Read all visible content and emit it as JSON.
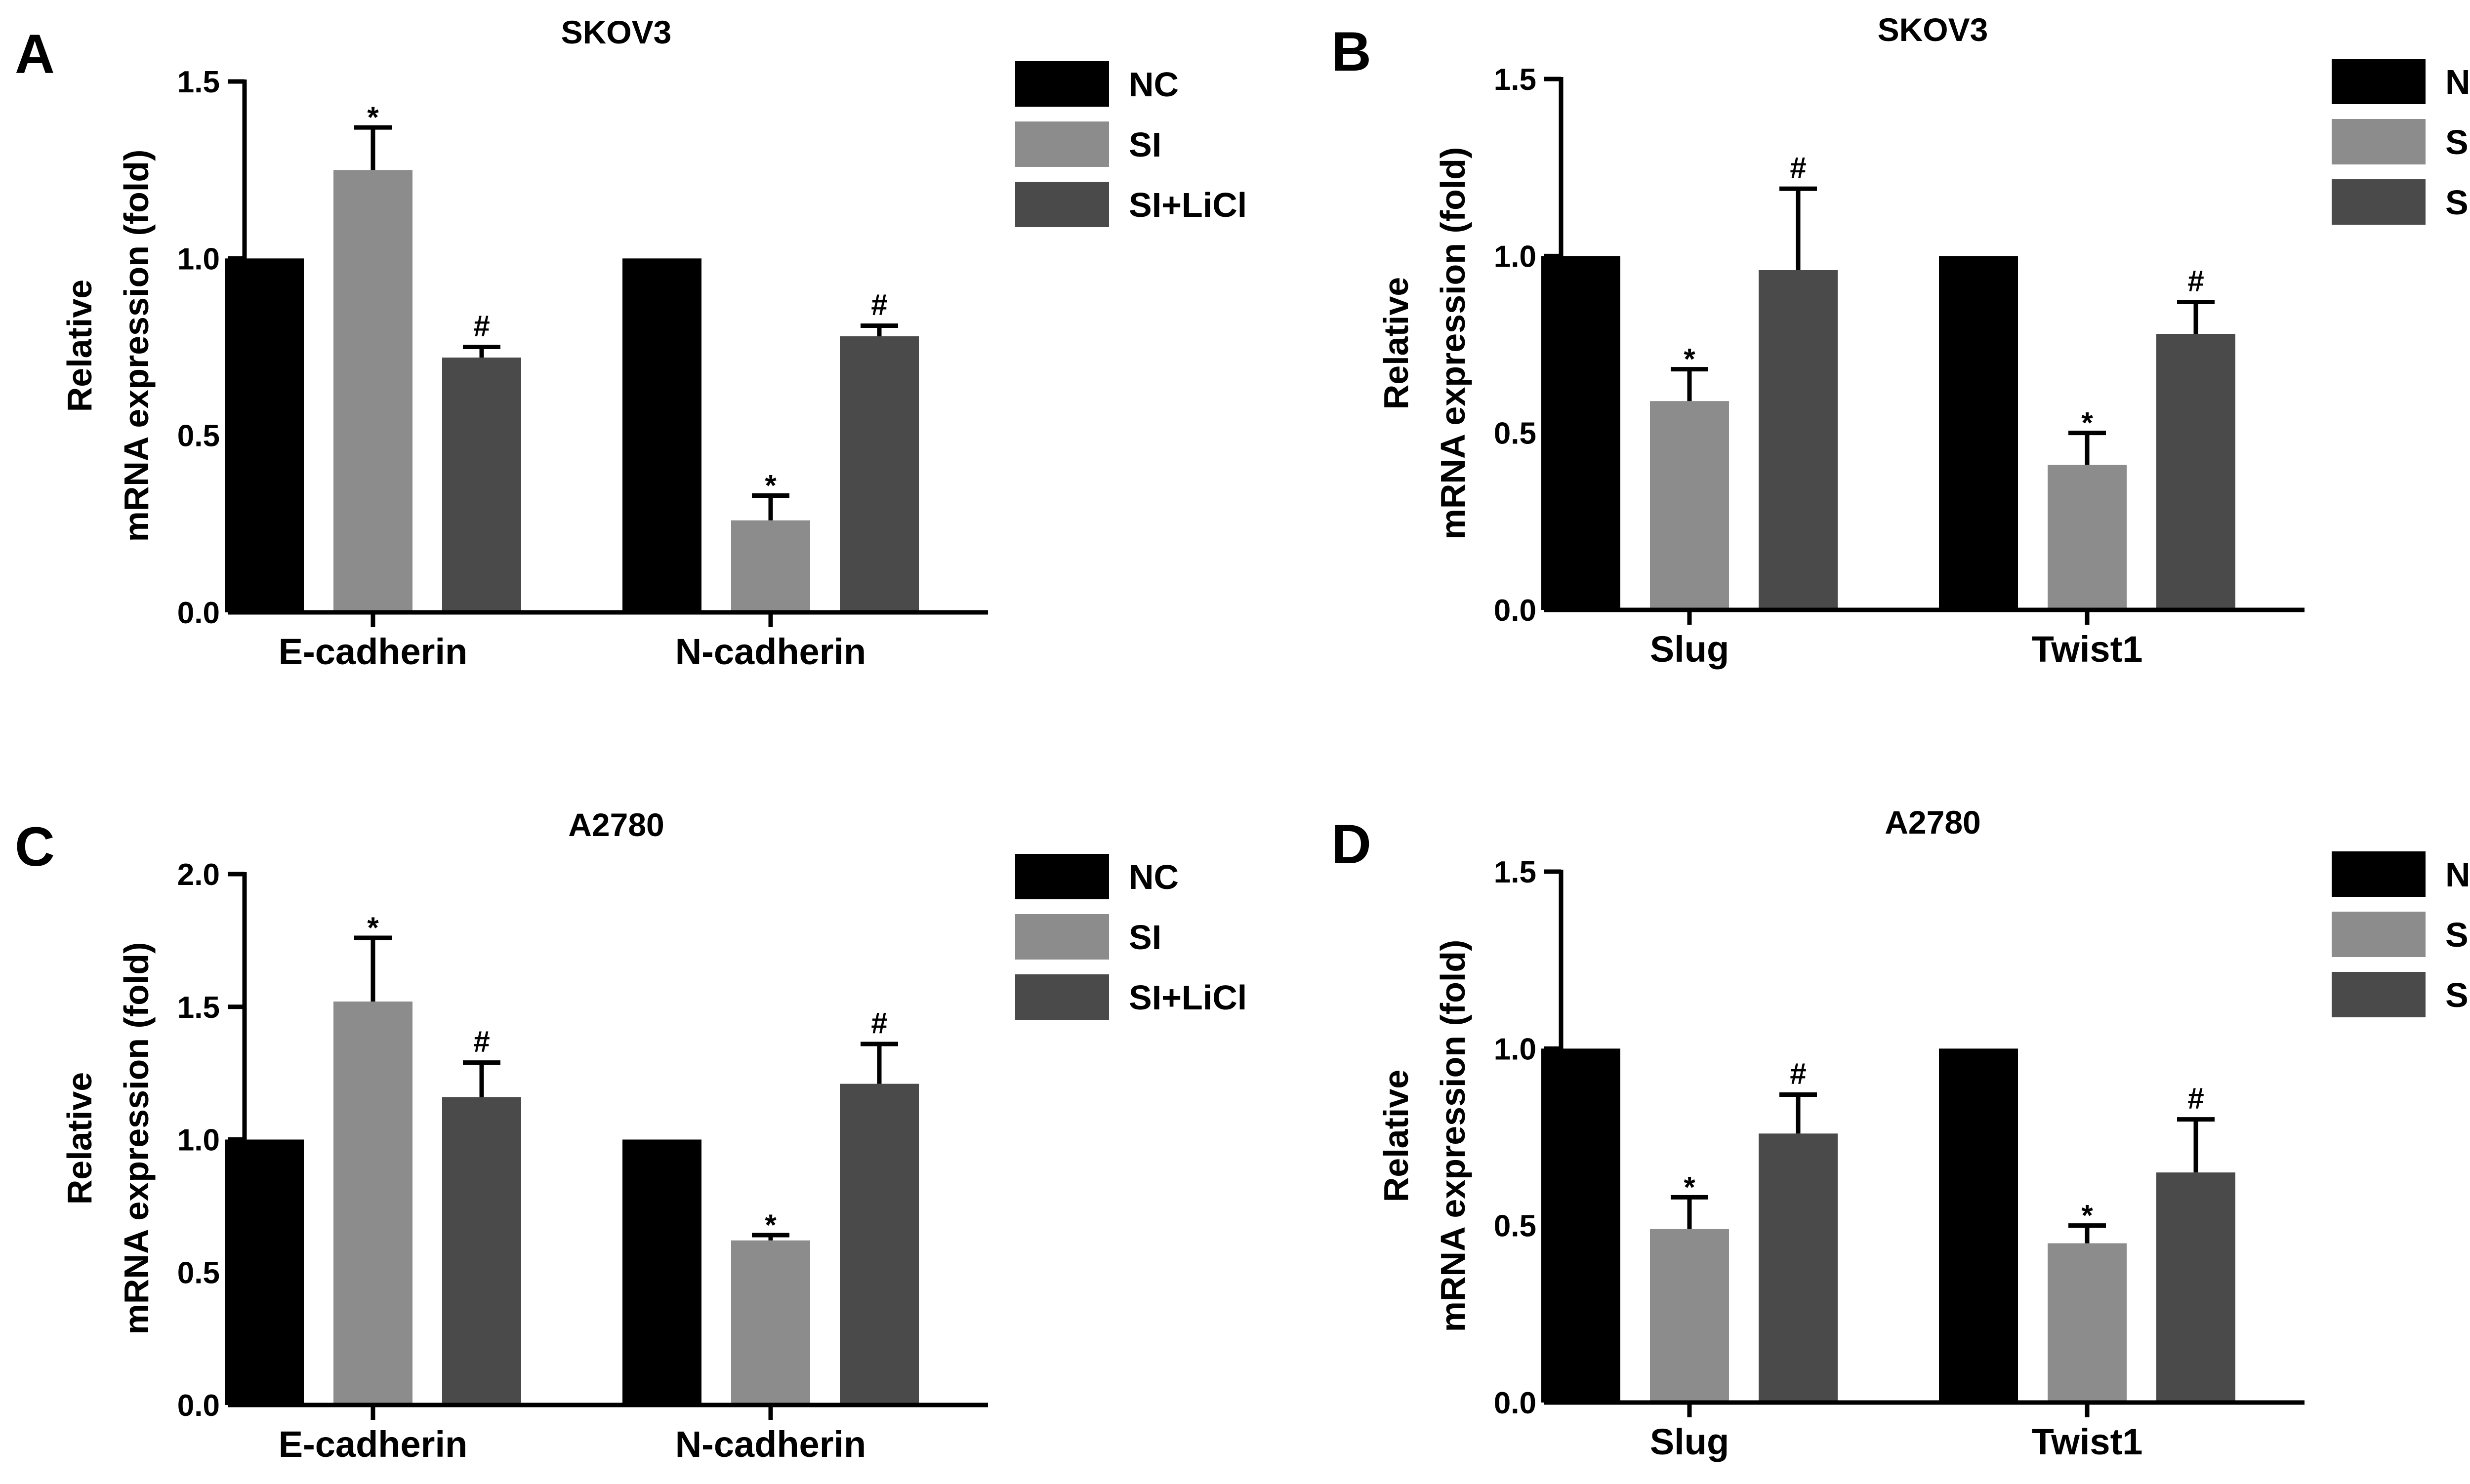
{
  "colors": {
    "NC": "#000000",
    "SI": "#8c8c8c",
    "SI+LiCl": "#4a4a4a"
  },
  "legend": [
    "NC",
    "SI",
    "SI+LiCl"
  ],
  "chart_data": [
    {
      "panel": "A",
      "type": "bar",
      "title": "SKOV3",
      "ylabel": [
        "Relative",
        "mRNA expression (fold)"
      ],
      "ylim": [
        0,
        1.5
      ],
      "yticks": [
        0.0,
        0.5,
        1.0,
        1.5
      ],
      "ytick_labels": [
        "0.0",
        "0.5",
        "1.0",
        "1.5"
      ],
      "categories": [
        "E-cadherin",
        "N-cadherin"
      ],
      "series": [
        {
          "name": "NC",
          "values": [
            1.0,
            1.0
          ],
          "errors": [
            0,
            0
          ],
          "marks": [
            "",
            ""
          ]
        },
        {
          "name": "SI",
          "values": [
            1.25,
            0.26
          ],
          "errors": [
            0.12,
            0.07
          ],
          "marks": [
            "*",
            "*"
          ]
        },
        {
          "name": "SI+LiCl",
          "values": [
            0.72,
            0.78
          ],
          "errors": [
            0.03,
            0.03
          ],
          "marks": [
            "#",
            "#"
          ]
        }
      ]
    },
    {
      "panel": "B",
      "type": "bar",
      "title": "SKOV3",
      "ylabel": [
        "Relative",
        "mRNA expression (fold)"
      ],
      "ylim": [
        0,
        1.5
      ],
      "yticks": [
        0.0,
        0.5,
        1.0,
        1.5
      ],
      "ytick_labels": [
        "0.0",
        "0.5",
        "1.0",
        "1.5"
      ],
      "categories": [
        "Slug",
        "Twist1"
      ],
      "series": [
        {
          "name": "NC",
          "values": [
            1.0,
            1.0
          ],
          "errors": [
            0,
            0
          ],
          "marks": [
            "",
            ""
          ]
        },
        {
          "name": "SI",
          "values": [
            0.59,
            0.41
          ],
          "errors": [
            0.09,
            0.09
          ],
          "marks": [
            "*",
            "*"
          ]
        },
        {
          "name": "SI+LiCl",
          "values": [
            0.96,
            0.78
          ],
          "errors": [
            0.23,
            0.09
          ],
          "marks": [
            "#",
            "#"
          ]
        }
      ]
    },
    {
      "panel": "C",
      "type": "bar",
      "title": "A2780",
      "ylabel": [
        "Relative",
        "mRNA expression (fold)"
      ],
      "ylim": [
        0,
        2.0
      ],
      "yticks": [
        0.0,
        0.5,
        1.0,
        1.5,
        2.0
      ],
      "ytick_labels": [
        "0.0",
        "0.5",
        "1.0",
        "1.5",
        "2.0"
      ],
      "categories": [
        "E-cadherin",
        "N-cadherin"
      ],
      "series": [
        {
          "name": "NC",
          "values": [
            1.0,
            1.0
          ],
          "errors": [
            0,
            0
          ],
          "marks": [
            "",
            ""
          ]
        },
        {
          "name": "SI",
          "values": [
            1.52,
            0.62
          ],
          "errors": [
            0.24,
            0.02
          ],
          "marks": [
            "*",
            "*"
          ]
        },
        {
          "name": "SI+LiCl",
          "values": [
            1.16,
            1.21
          ],
          "errors": [
            0.13,
            0.15
          ],
          "marks": [
            "#",
            "#"
          ]
        }
      ]
    },
    {
      "panel": "D",
      "type": "bar",
      "title": "A2780",
      "ylabel": [
        "Relative",
        "mRNA expression (fold)"
      ],
      "ylim": [
        0,
        1.5
      ],
      "yticks": [
        0.0,
        0.5,
        1.0,
        1.5
      ],
      "ytick_labels": [
        "0.0",
        "0.5",
        "1.0",
        "1.5"
      ],
      "categories": [
        "Slug",
        "Twist1"
      ],
      "series": [
        {
          "name": "NC",
          "values": [
            1.0,
            1.0
          ],
          "errors": [
            0,
            0
          ],
          "marks": [
            "",
            ""
          ]
        },
        {
          "name": "SI",
          "values": [
            0.49,
            0.45
          ],
          "errors": [
            0.09,
            0.05
          ],
          "marks": [
            "*",
            "*"
          ]
        },
        {
          "name": "SI+LiCl",
          "values": [
            0.76,
            0.65
          ],
          "errors": [
            0.11,
            0.15
          ],
          "marks": [
            "#",
            "#"
          ]
        }
      ]
    }
  ]
}
